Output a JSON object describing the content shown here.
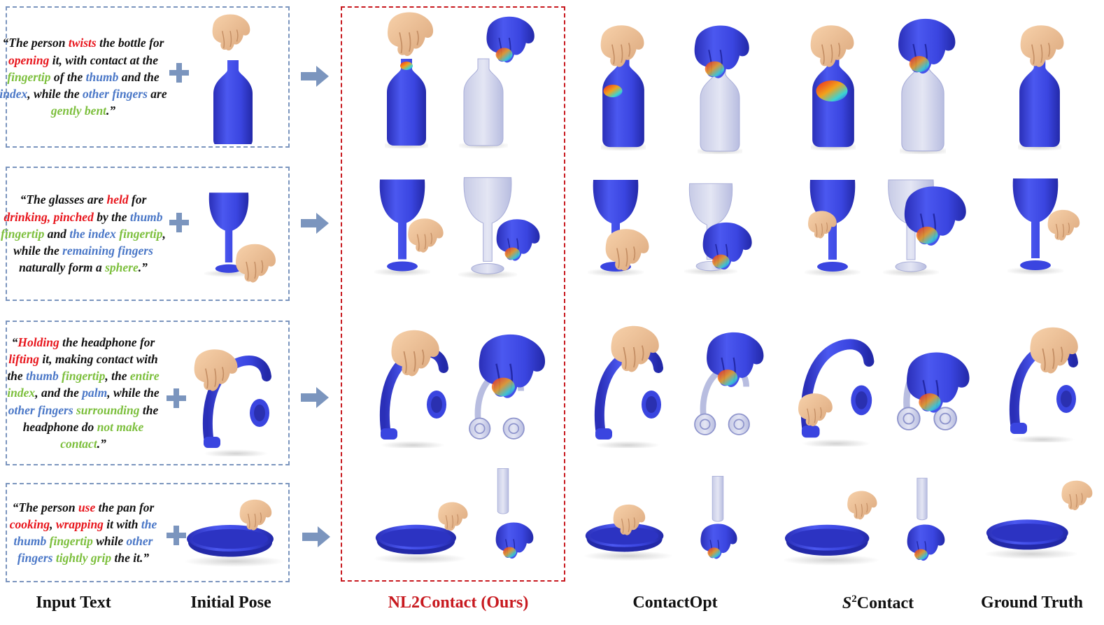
{
  "rows": [
    {
      "prompt_segments": [
        {
          "text": "“The person ",
          "color": "black"
        },
        {
          "text": "twists",
          "color": "red"
        },
        {
          "text": " the bottle for ",
          "color": "black"
        },
        {
          "text": "opening",
          "color": "red"
        },
        {
          "text": " it, with contact at the ",
          "color": "black"
        },
        {
          "text": "fingertip",
          "color": "green"
        },
        {
          "text": " of the ",
          "color": "black"
        },
        {
          "text": "thumb",
          "color": "blue"
        },
        {
          "text": " and the ",
          "color": "black"
        },
        {
          "text": "index",
          "color": "blue"
        },
        {
          "text": ", while the ",
          "color": "black"
        },
        {
          "text": "other fingers",
          "color": "blue"
        },
        {
          "text": " are ",
          "color": "black"
        },
        {
          "text": "gently bent",
          "color": "green"
        },
        {
          "text": ".”",
          "color": "black"
        }
      ]
    },
    {
      "prompt_segments": [
        {
          "text": "“The glasses are ",
          "color": "black"
        },
        {
          "text": "held",
          "color": "red"
        },
        {
          "text": " for ",
          "color": "black"
        },
        {
          "text": "drinking, pinched",
          "color": "red"
        },
        {
          "text": " by the ",
          "color": "black"
        },
        {
          "text": "thumb",
          "color": "blue"
        },
        {
          "text": " ",
          "color": "black"
        },
        {
          "text": "fingertip",
          "color": "green"
        },
        {
          "text": " and ",
          "color": "black"
        },
        {
          "text": "the index",
          "color": "blue"
        },
        {
          "text": " ",
          "color": "black"
        },
        {
          "text": "fingertip",
          "color": "green"
        },
        {
          "text": ", while the ",
          "color": "black"
        },
        {
          "text": "remaining fingers",
          "color": "blue"
        },
        {
          "text": " naturally form a ",
          "color": "black"
        },
        {
          "text": "sphere",
          "color": "green"
        },
        {
          "text": ".”",
          "color": "black"
        }
      ]
    },
    {
      "prompt_segments": [
        {
          "text": "“",
          "color": "black"
        },
        {
          "text": "Holding",
          "color": "red"
        },
        {
          "text": " the headphone for ",
          "color": "black"
        },
        {
          "text": "lifting",
          "color": "red"
        },
        {
          "text": " it, making contact with the ",
          "color": "black"
        },
        {
          "text": "thumb",
          "color": "blue"
        },
        {
          "text": " ",
          "color": "black"
        },
        {
          "text": "fingertip",
          "color": "green"
        },
        {
          "text": ", the ",
          "color": "black"
        },
        {
          "text": "entire index",
          "color": "green"
        },
        {
          "text": ", and the ",
          "color": "black"
        },
        {
          "text": "palm",
          "color": "blue"
        },
        {
          "text": ", while the ",
          "color": "black"
        },
        {
          "text": "other fingers",
          "color": "blue"
        },
        {
          "text": " ",
          "color": "black"
        },
        {
          "text": "surrounding",
          "color": "green"
        },
        {
          "text": " the headphone do ",
          "color": "black"
        },
        {
          "text": "not make contact",
          "color": "green"
        },
        {
          "text": ".”",
          "color": "black"
        }
      ]
    },
    {
      "prompt_segments": [
        {
          "text": "“The person ",
          "color": "black"
        },
        {
          "text": "use",
          "color": "red"
        },
        {
          "text": " the pan for ",
          "color": "black"
        },
        {
          "text": "cooking",
          "color": "red"
        },
        {
          "text": ", ",
          "color": "black"
        },
        {
          "text": "wrapping",
          "color": "red"
        },
        {
          "text": " it with ",
          "color": "black"
        },
        {
          "text": "the thumb",
          "color": "blue"
        },
        {
          "text": " ",
          "color": "black"
        },
        {
          "text": "fingertip",
          "color": "green"
        },
        {
          "text": " while ",
          "color": "black"
        },
        {
          "text": "other fingers",
          "color": "blue"
        },
        {
          "text": " ",
          "color": "black"
        },
        {
          "text": "tightly grip",
          "color": "green"
        },
        {
          "text": " the it.”",
          "color": "black"
        }
      ]
    }
  ],
  "columns": {
    "input_text": "Input Text",
    "initial_pose": "Initial Pose",
    "ours": "NL2Contact (Ours)",
    "contactopt": "ContactOpt",
    "s2contact_base": "S",
    "s2contact_sup": "2",
    "s2contact_rest": "Contact",
    "ground_truth": "Ground Truth"
  },
  "colors": {
    "red": "#e8161d",
    "blue": "#4a77c7",
    "green": "#7cbf3c",
    "black": "#111111",
    "ours_accent": "#c8191f",
    "box_border": "#7b95be",
    "object_blue": "#3a45e0",
    "skin": "#f2c196"
  },
  "icons": {
    "plus": "plus-icon",
    "arrow": "right-arrow-icon"
  }
}
